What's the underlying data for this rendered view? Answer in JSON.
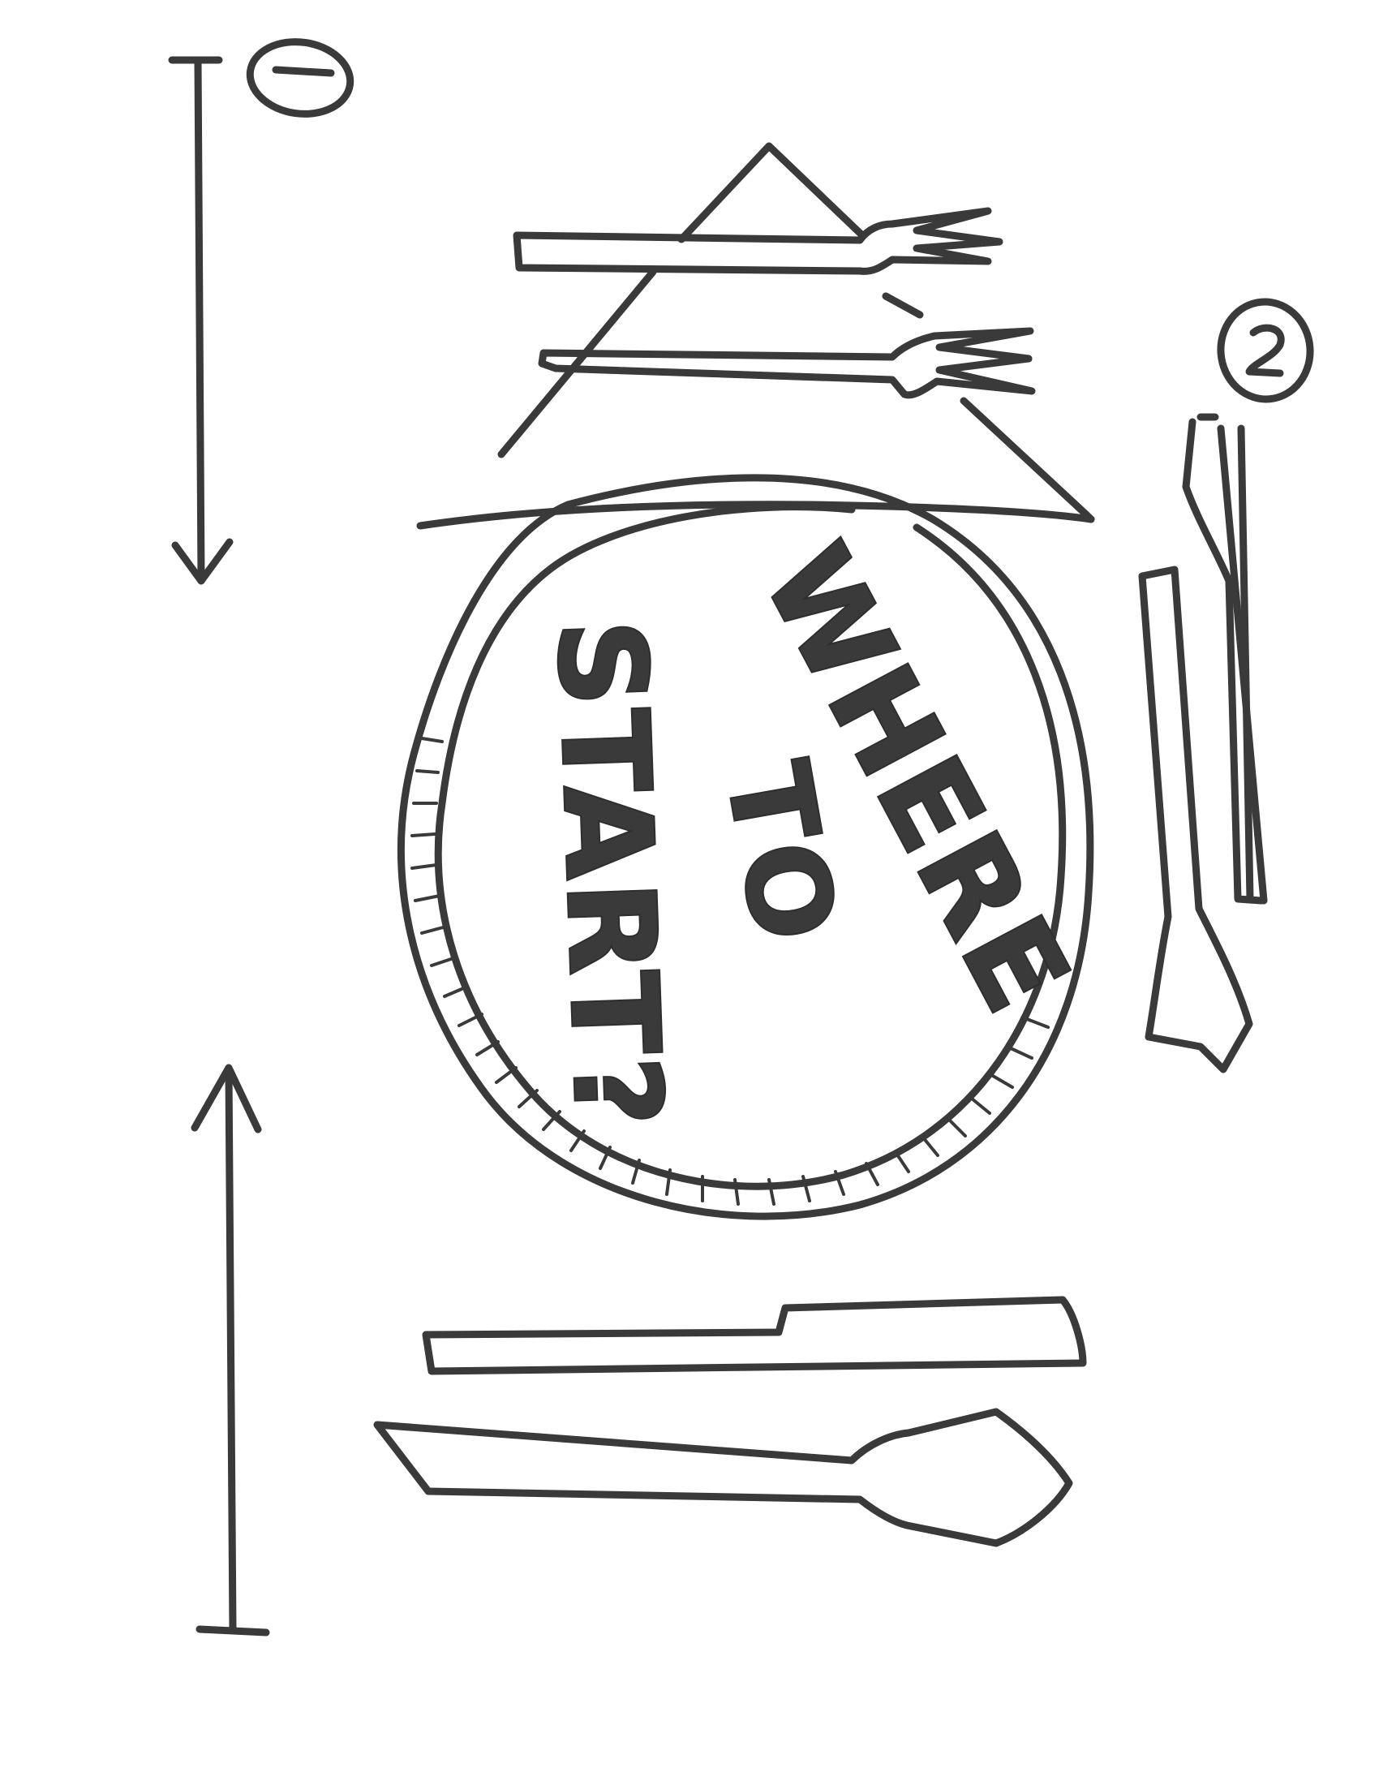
{
  "steps": {
    "first": "1",
    "second": "2"
  },
  "plate_text": {
    "line1": "WHERE",
    "line2": "TO",
    "line3": "START?"
  }
}
